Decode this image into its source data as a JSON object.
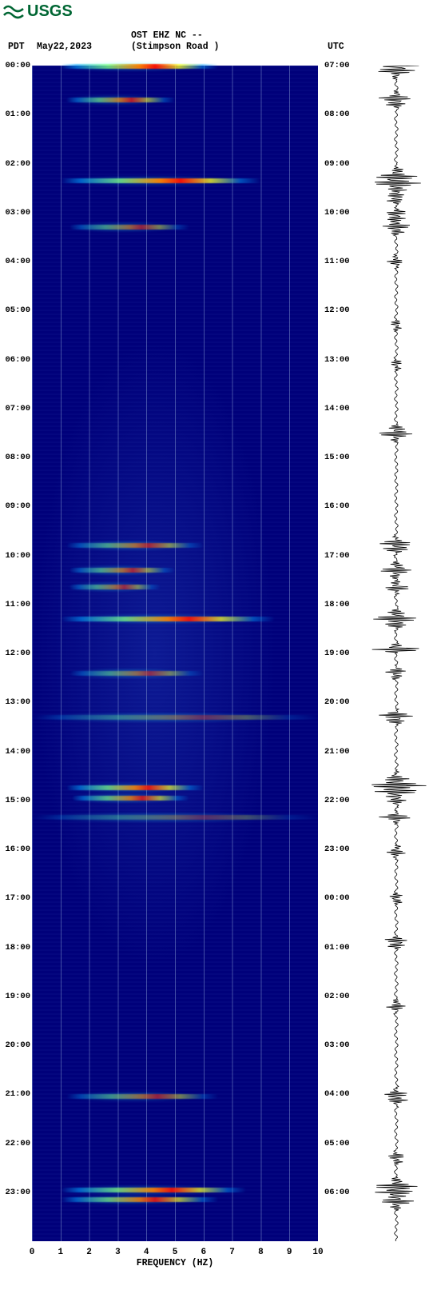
{
  "logo_text": "USGS",
  "logo_color": "#006633",
  "header": {
    "left_tz": "PDT",
    "date": "May22,2023",
    "station": "OST EHZ NC --",
    "location": "(Stimpson Road )",
    "right_tz": "UTC"
  },
  "spectrogram": {
    "type": "spectrogram",
    "background_color": "#00007a",
    "gridline_color": "#7890c8",
    "x_axis": {
      "label": "FREQUENCY (HZ)",
      "min": 0,
      "max": 10,
      "ticks": [
        0,
        1,
        2,
        3,
        4,
        5,
        6,
        7,
        8,
        9,
        10
      ]
    },
    "jet_palette": [
      "#00008b",
      "#0020ff",
      "#00a0ff",
      "#20ffff",
      "#80ff80",
      "#ffff20",
      "#ff8000",
      "#ff1000",
      "#a00000"
    ],
    "events": [
      {
        "t": 0.02,
        "f0": 1.0,
        "f1": 6.5,
        "intensity": 0.95
      },
      {
        "t": 0.7,
        "f0": 1.2,
        "f1": 5.0,
        "intensity": 0.7
      },
      {
        "t": 2.35,
        "f0": 1.0,
        "f1": 8.0,
        "intensity": 0.95
      },
      {
        "t": 3.3,
        "f0": 1.3,
        "f1": 5.5,
        "intensity": 0.55
      },
      {
        "t": 9.8,
        "f0": 1.2,
        "f1": 6.0,
        "intensity": 0.6
      },
      {
        "t": 10.3,
        "f0": 1.3,
        "f1": 5.0,
        "intensity": 0.6
      },
      {
        "t": 10.65,
        "f0": 1.3,
        "f1": 4.5,
        "intensity": 0.55
      },
      {
        "t": 11.3,
        "f0": 1.0,
        "f1": 8.5,
        "intensity": 0.9
      },
      {
        "t": 12.4,
        "f0": 1.3,
        "f1": 6.0,
        "intensity": 0.5
      },
      {
        "t": 13.3,
        "f0": 0.0,
        "f1": 10.0,
        "intensity": 0.35
      },
      {
        "t": 14.75,
        "f0": 1.2,
        "f1": 6.0,
        "intensity": 0.85
      },
      {
        "t": 14.95,
        "f0": 1.4,
        "f1": 5.5,
        "intensity": 0.75
      },
      {
        "t": 15.35,
        "f0": 0.0,
        "f1": 10.0,
        "intensity": 0.3
      },
      {
        "t": 21.05,
        "f0": 1.2,
        "f1": 6.5,
        "intensity": 0.55
      },
      {
        "t": 22.95,
        "f0": 1.0,
        "f1": 7.5,
        "intensity": 0.9
      },
      {
        "t": 23.15,
        "f0": 1.0,
        "f1": 6.5,
        "intensity": 0.8
      }
    ],
    "left_time_labels": [
      "00:00",
      "01:00",
      "02:00",
      "03:00",
      "04:00",
      "05:00",
      "06:00",
      "07:00",
      "08:00",
      "09:00",
      "10:00",
      "11:00",
      "12:00",
      "13:00",
      "14:00",
      "15:00",
      "16:00",
      "17:00",
      "18:00",
      "19:00",
      "20:00",
      "21:00",
      "22:00",
      "23:00"
    ],
    "right_time_labels": [
      "07:00",
      "08:00",
      "09:00",
      "10:00",
      "11:00",
      "12:00",
      "13:00",
      "14:00",
      "15:00",
      "16:00",
      "17:00",
      "18:00",
      "19:00",
      "20:00",
      "21:00",
      "22:00",
      "23:00",
      "00:00",
      "01:00",
      "02:00",
      "03:00",
      "04:00",
      "05:00",
      "06:00"
    ]
  },
  "seismo_trace": {
    "type": "waveform",
    "color": "#000000",
    "baseline_x": 0.5,
    "noise_amp": 0.04,
    "bursts": [
      {
        "t": 0.02,
        "amp": 0.85,
        "dur": 0.015
      },
      {
        "t": 0.7,
        "amp": 0.55,
        "dur": 0.012
      },
      {
        "t": 2.35,
        "amp": 0.8,
        "dur": 0.018
      },
      {
        "t": 2.7,
        "amp": 0.35,
        "dur": 0.01
      },
      {
        "t": 3.05,
        "amp": 0.4,
        "dur": 0.01
      },
      {
        "t": 3.3,
        "amp": 0.45,
        "dur": 0.012
      },
      {
        "t": 4.0,
        "amp": 0.25,
        "dur": 0.01
      },
      {
        "t": 5.3,
        "amp": 0.2,
        "dur": 0.01
      },
      {
        "t": 6.1,
        "amp": 0.2,
        "dur": 0.01
      },
      {
        "t": 7.5,
        "amp": 0.55,
        "dur": 0.012
      },
      {
        "t": 9.8,
        "amp": 0.6,
        "dur": 0.012
      },
      {
        "t": 10.3,
        "amp": 0.5,
        "dur": 0.012
      },
      {
        "t": 10.65,
        "amp": 0.4,
        "dur": 0.01
      },
      {
        "t": 11.3,
        "amp": 0.7,
        "dur": 0.014
      },
      {
        "t": 11.9,
        "amp": 0.95,
        "dur": 0.006
      },
      {
        "t": 12.4,
        "amp": 0.35,
        "dur": 0.01
      },
      {
        "t": 13.3,
        "amp": 0.6,
        "dur": 0.01
      },
      {
        "t": 14.75,
        "amp": 0.95,
        "dur": 0.02
      },
      {
        "t": 14.95,
        "amp": 0.55,
        "dur": 0.012
      },
      {
        "t": 15.35,
        "amp": 0.5,
        "dur": 0.008
      },
      {
        "t": 16.05,
        "amp": 0.3,
        "dur": 0.01
      },
      {
        "t": 17.0,
        "amp": 0.25,
        "dur": 0.01
      },
      {
        "t": 17.9,
        "amp": 0.45,
        "dur": 0.01
      },
      {
        "t": 19.2,
        "amp": 0.3,
        "dur": 0.01
      },
      {
        "t": 21.05,
        "amp": 0.45,
        "dur": 0.012
      },
      {
        "t": 22.3,
        "amp": 0.3,
        "dur": 0.01
      },
      {
        "t": 22.95,
        "amp": 0.85,
        "dur": 0.016
      },
      {
        "t": 23.15,
        "amp": 0.65,
        "dur": 0.014
      }
    ]
  }
}
